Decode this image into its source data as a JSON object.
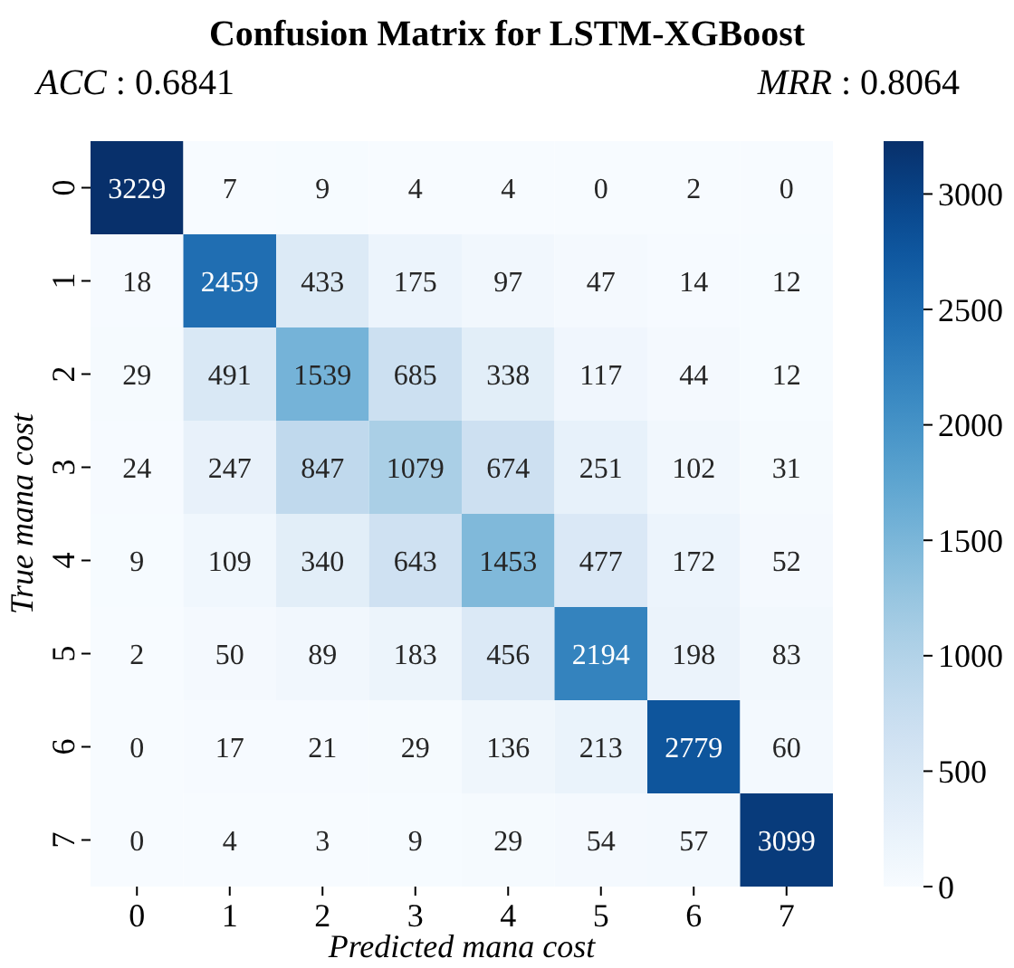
{
  "chart_data": {
    "type": "heatmap",
    "title": "Confusion Matrix for LSTM-XGBoost",
    "annotations": [
      "ACC : 0.6841",
      "MRR : 0.8064"
    ],
    "xlabel": "Predicted mana cost",
    "ylabel": "True mana cost",
    "categories": [
      "0",
      "1",
      "2",
      "3",
      "4",
      "5",
      "6",
      "7"
    ],
    "y_categories": [
      "0",
      "1",
      "2",
      "3",
      "4",
      "5",
      "6",
      "7"
    ],
    "cells": [
      [
        3229,
        7,
        9,
        4,
        4,
        0,
        2,
        0
      ],
      [
        18,
        2459,
        433,
        175,
        97,
        47,
        14,
        12
      ],
      [
        29,
        491,
        1539,
        685,
        338,
        117,
        44,
        12
      ],
      [
        24,
        247,
        847,
        1079,
        674,
        251,
        102,
        31
      ],
      [
        9,
        109,
        340,
        643,
        1453,
        477,
        172,
        52
      ],
      [
        2,
        50,
        89,
        183,
        456,
        2194,
        198,
        83
      ],
      [
        0,
        17,
        21,
        29,
        136,
        213,
        2779,
        60
      ],
      [
        0,
        4,
        3,
        9,
        29,
        54,
        57,
        3099
      ]
    ],
    "data_labels": true,
    "clim": [
      0,
      3229
    ],
    "cticks": [
      0,
      500,
      1000,
      1500,
      2000,
      2500,
      3000
    ]
  }
}
